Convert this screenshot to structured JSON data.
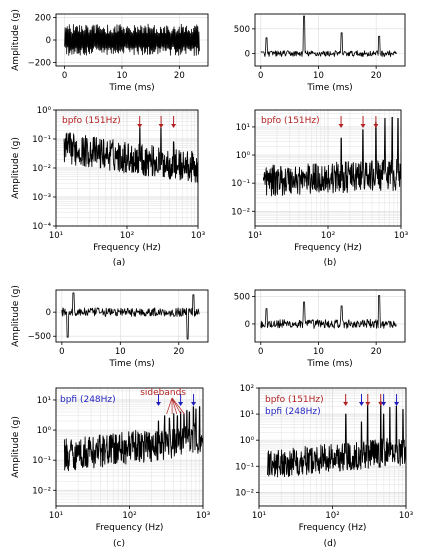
{
  "figure": {
    "captions": [
      "(a)",
      "(b)",
      "(c)",
      "(d)"
    ]
  },
  "chart_data": [
    {
      "id": "a-time",
      "type": "line",
      "panel": "a",
      "scale": "linear",
      "xlabel": "Time (ms)",
      "ylabel": "Amplitude (g)",
      "xlim": [
        -1.5,
        25
      ],
      "ylim": [
        -230,
        230
      ],
      "xticks": [
        0,
        10,
        20
      ],
      "yticks": [
        -200,
        0,
        200
      ],
      "xtick_labels": [
        "0",
        "10",
        "20"
      ],
      "ytick_labels": [
        "−200",
        "0",
        "200"
      ],
      "grid": true,
      "signal": {
        "type": "dense-oscillation",
        "amplitude": 140,
        "spikes": []
      }
    },
    {
      "id": "b-time",
      "type": "line",
      "panel": "b",
      "scale": "linear",
      "xlabel": "Time (ms)",
      "ylabel": "",
      "xlim": [
        -1,
        25
      ],
      "ylim": [
        -250,
        800
      ],
      "xticks": [
        0,
        10,
        20
      ],
      "yticks": [
        0,
        500
      ],
      "xtick_labels": [
        "0",
        "10",
        "20"
      ],
      "ytick_labels": [
        "0",
        "500"
      ],
      "grid": true,
      "signal": {
        "type": "noise-with-impulses",
        "amplitude": 60,
        "spikes": [
          [
            1,
            320
          ],
          [
            7.5,
            760
          ],
          [
            14,
            420
          ],
          [
            20.5,
            350
          ]
        ]
      }
    },
    {
      "id": "a-spec",
      "type": "line",
      "panel": "a",
      "scale": "loglog",
      "xlabel": "Frequency (Hz)",
      "ylabel": "Amplitude (g)",
      "xlim": [
        10,
        1000
      ],
      "ylim": [
        0.0001,
        1
      ],
      "xticks": [
        10,
        100,
        1000
      ],
      "yticks": [
        0.0001,
        0.001,
        0.01,
        0.1,
        1
      ],
      "xtick_labels": [
        "10¹",
        "10²",
        "10³"
      ],
      "ytick_labels": [
        "10⁻⁴",
        "10⁻³",
        "10⁻²",
        "10⁻¹",
        "10⁰"
      ],
      "grid": true,
      "spectrum": {
        "floor_start": 0.05,
        "floor_end": 0.01,
        "start_freq": 13,
        "peaks": [
          [
            151,
            0.25
          ],
          [
            302,
            0.25
          ],
          [
            453,
            0.08
          ]
        ]
      },
      "annotations": [
        {
          "text": "bpfo (151Hz)",
          "color": "#b22222"
        }
      ],
      "arrows": [
        {
          "freq": 151,
          "color": "#b22222"
        },
        {
          "freq": 302,
          "color": "#b22222"
        },
        {
          "freq": 453,
          "color": "#b22222"
        }
      ]
    },
    {
      "id": "b-spec",
      "type": "line",
      "panel": "b",
      "scale": "loglog",
      "xlabel": "Frequency (Hz)",
      "ylabel": "",
      "xlim": [
        10,
        1000
      ],
      "ylim": [
        0.003,
        40
      ],
      "xticks": [
        10,
        100,
        1000
      ],
      "yticks": [
        0.01,
        0.1,
        1,
        10
      ],
      "xtick_labels": [
        "10¹",
        "10²",
        "10³"
      ],
      "ytick_labels": [
        "10⁻²",
        "10⁻¹",
        "10⁰",
        "10¹"
      ],
      "grid": true,
      "spectrum": {
        "floor_start": 0.12,
        "floor_end": 0.2,
        "start_freq": 13,
        "peaks": [
          [
            151,
            4
          ],
          [
            302,
            8
          ],
          [
            453,
            15
          ],
          [
            604,
            20
          ],
          [
            755,
            22
          ],
          [
            906,
            20
          ]
        ]
      },
      "annotations": [
        {
          "text": "bpfo (151Hz)",
          "color": "#b22222"
        }
      ],
      "arrows": [
        {
          "freq": 151,
          "color": "#b22222"
        },
        {
          "freq": 302,
          "color": "#b22222"
        },
        {
          "freq": 453,
          "color": "#b22222"
        }
      ]
    },
    {
      "id": "c-time",
      "type": "line",
      "panel": "c",
      "scale": "linear",
      "xlabel": "Time (ms)",
      "ylabel": "Amplitude (g)",
      "xlim": [
        -1,
        25
      ],
      "ylim": [
        -620,
        460
      ],
      "xticks": [
        0,
        10,
        20
      ],
      "yticks": [
        -500,
        0
      ],
      "xtick_labels": [
        "0",
        "10",
        "20"
      ],
      "ytick_labels": [
        "−500",
        "0"
      ],
      "grid": true,
      "signal": {
        "type": "noise-with-impulses",
        "amplitude": 90,
        "spikes": [
          [
            1,
            -520
          ],
          [
            2,
            400
          ],
          [
            21.5,
            -560
          ],
          [
            22.5,
            360
          ]
        ]
      }
    },
    {
      "id": "d-time",
      "type": "line",
      "panel": "d",
      "scale": "linear",
      "xlabel": "Time (ms)",
      "ylabel": "",
      "xlim": [
        -1,
        25
      ],
      "ylim": [
        -330,
        620
      ],
      "xticks": [
        0,
        10,
        20
      ],
      "yticks": [
        0,
        500
      ],
      "xtick_labels": [
        "0",
        "10",
        "20"
      ],
      "ytick_labels": [
        "0",
        "500"
      ],
      "grid": true,
      "signal": {
        "type": "noise-with-impulses",
        "amplitude": 85,
        "spikes": [
          [
            1,
            280
          ],
          [
            7.5,
            400
          ],
          [
            14,
            330
          ],
          [
            20.5,
            520
          ]
        ]
      }
    },
    {
      "id": "c-spec",
      "type": "line",
      "panel": "c",
      "scale": "loglog",
      "xlabel": "Frequency (Hz)",
      "ylabel": "Amplitude (g)",
      "xlim": [
        10,
        1000
      ],
      "ylim": [
        0.003,
        25
      ],
      "xticks": [
        10,
        100,
        1000
      ],
      "yticks": [
        0.01,
        0.1,
        1,
        10
      ],
      "xtick_labels": [
        "10¹",
        "10²",
        "10³"
      ],
      "ytick_labels": [
        "10⁻²",
        "10⁻¹",
        "10⁰",
        "10¹"
      ],
      "grid": true,
      "spectrum": {
        "floor_start": 0.15,
        "floor_end": 0.5,
        "start_freq": 13,
        "peaks": [
          [
            248,
            2
          ],
          [
            300,
            3
          ],
          [
            350,
            2.5
          ],
          [
            400,
            3.5
          ],
          [
            450,
            3
          ],
          [
            496,
            4
          ],
          [
            550,
            3.5
          ],
          [
            600,
            4.5
          ],
          [
            650,
            4
          ],
          [
            744,
            6
          ],
          [
            800,
            5
          ],
          [
            900,
            6
          ]
        ]
      },
      "annotations": [
        {
          "text": "bpfi (248Hz)",
          "color": "#1f1fbf"
        },
        {
          "text": "sidebands",
          "color": "#b22222"
        }
      ],
      "arrows": [
        {
          "freq": 248,
          "color": "#1f1fbf"
        },
        {
          "freq": 496,
          "color": "#1f1fbf"
        },
        {
          "freq": 744,
          "color": "#1f1fbf"
        }
      ]
    },
    {
      "id": "d-spec",
      "type": "line",
      "panel": "d",
      "scale": "loglog",
      "xlabel": "Frequency (Hz)",
      "ylabel": "",
      "xlim": [
        10,
        1000
      ],
      "ylim": [
        0.003,
        100
      ],
      "xticks": [
        10,
        100,
        1000
      ],
      "yticks": [
        0.01,
        0.1,
        1,
        10,
        100
      ],
      "xtick_labels": [
        "10¹",
        "10²",
        "10³"
      ],
      "ytick_labels": [
        "10⁻²",
        "10⁻¹",
        "10⁰",
        "10¹",
        "10²"
      ],
      "grid": true,
      "spectrum": {
        "floor_start": 0.12,
        "floor_end": 0.4,
        "start_freq": 13,
        "peaks": [
          [
            151,
            10
          ],
          [
            248,
            5
          ],
          [
            302,
            25
          ],
          [
            453,
            30
          ],
          [
            496,
            10
          ],
          [
            604,
            18
          ],
          [
            744,
            20
          ],
          [
            906,
            15
          ]
        ]
      },
      "annotations": [
        {
          "text": "bpfo (151Hz)",
          "color": "#b22222"
        },
        {
          "text": "bpfi (248Hz)",
          "color": "#1f1fbf"
        }
      ],
      "arrows": [
        {
          "freq": 151,
          "color": "#b22222"
        },
        {
          "freq": 302,
          "color": "#b22222"
        },
        {
          "freq": 453,
          "color": "#b22222"
        },
        {
          "freq": 248,
          "color": "#1f1fbf"
        },
        {
          "freq": 496,
          "color": "#1f1fbf"
        },
        {
          "freq": 744,
          "color": "#1f1fbf"
        }
      ]
    }
  ]
}
